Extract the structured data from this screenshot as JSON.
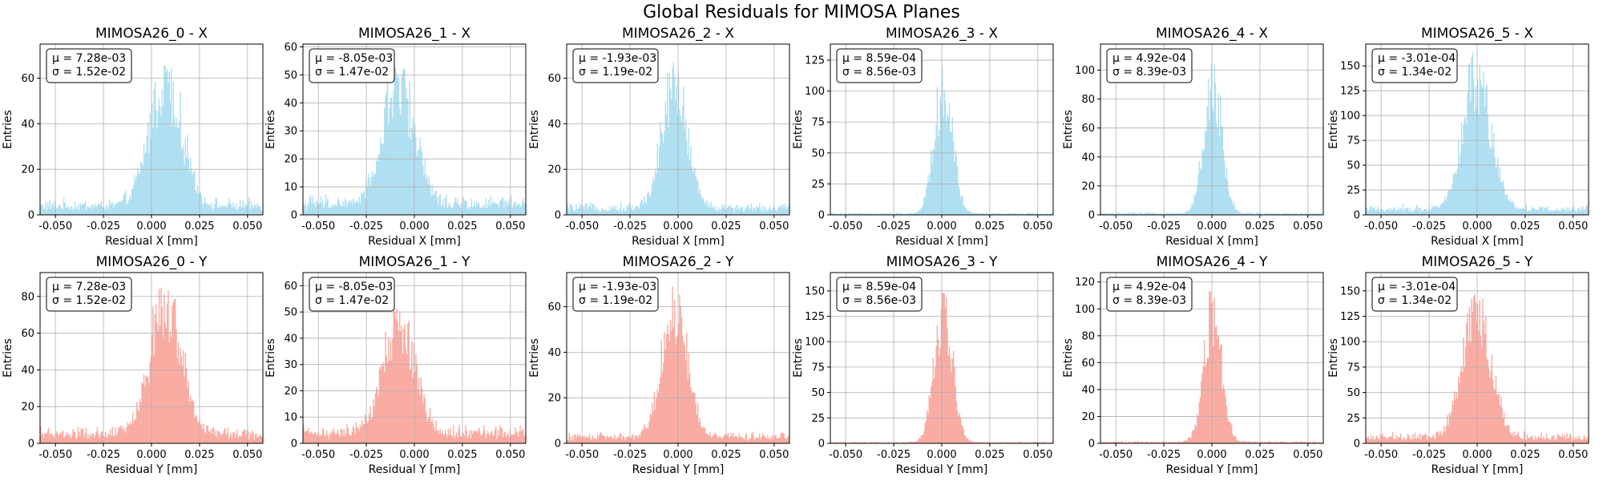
{
  "figure": {
    "title": "Global Residuals for MIMOSA Planes"
  },
  "colors": {
    "x_fill": "#a6dcef",
    "y_fill": "#f8a298",
    "grid": "#b0b0b0",
    "frame": "#000000"
  },
  "chart_data": [
    {
      "type": "bar",
      "panel": "MIMOSA26_0 - X",
      "title": "MIMOSA26_0 - X",
      "xlabel": "Residual X [mm]",
      "ylabel": "Entries",
      "xlim": [
        -0.058,
        0.058
      ],
      "ylim": [
        0,
        75
      ],
      "xticks": [
        "-0.050",
        "-0.025",
        "0.000",
        "0.025",
        "0.050"
      ],
      "yticks": [
        "0",
        "20",
        "40",
        "60"
      ],
      "mean": 0.00728,
      "sigma": 0.0152,
      "stats": [
        "μ = 7.28e-03",
        "σ = 1.52e-02"
      ],
      "background": 4,
      "peak": 68,
      "grid": true,
      "legend": "top-left"
    },
    {
      "type": "bar",
      "panel": "MIMOSA26_1 - X",
      "title": "MIMOSA26_1 - X",
      "xlabel": "Residual X [mm]",
      "ylabel": "Entries",
      "xlim": [
        -0.058,
        0.058
      ],
      "ylim": [
        0,
        61
      ],
      "xticks": [
        "-0.050",
        "-0.025",
        "0.000",
        "0.025",
        "0.050"
      ],
      "yticks": [
        "0",
        "10",
        "20",
        "30",
        "40",
        "50",
        "60"
      ],
      "mean": -0.00805,
      "sigma": 0.0147,
      "stats": [
        "μ = -8.05e-03",
        "σ = 1.47e-02"
      ],
      "background": 4,
      "peak": 53,
      "grid": true,
      "legend": "top-left"
    },
    {
      "type": "bar",
      "panel": "MIMOSA26_2 - X",
      "title": "MIMOSA26_2 - X",
      "xlabel": "Residual X [mm]",
      "ylabel": "Entries",
      "xlim": [
        -0.058,
        0.058
      ],
      "ylim": [
        0,
        75
      ],
      "xticks": [
        "-0.050",
        "-0.025",
        "0.000",
        "0.025",
        "0.050"
      ],
      "yticks": [
        "0",
        "20",
        "40",
        "60"
      ],
      "mean": -0.00193,
      "sigma": 0.0119,
      "stats": [
        "μ = -1.93e-03",
        "σ = 1.19e-02"
      ],
      "background": 3,
      "peak": 68,
      "grid": true,
      "legend": "top-left"
    },
    {
      "type": "bar",
      "panel": "MIMOSA26_3 - X",
      "title": "MIMOSA26_3 - X",
      "xlabel": "Residual X [mm]",
      "ylabel": "Entries",
      "xlim": [
        -0.058,
        0.058
      ],
      "ylim": [
        0,
        138
      ],
      "xticks": [
        "-0.050",
        "-0.025",
        "0.000",
        "0.025",
        "0.050"
      ],
      "yticks": [
        "0",
        "25",
        "50",
        "75",
        "100",
        "125"
      ],
      "mean": 0.000859,
      "sigma": 0.00856,
      "stats": [
        "μ = 8.59e-04",
        "σ = 8.56e-03"
      ],
      "background": 1,
      "peak": 125,
      "grid": true,
      "legend": "top-left"
    },
    {
      "type": "bar",
      "panel": "MIMOSA26_4 - X",
      "title": "MIMOSA26_4 - X",
      "xlabel": "Residual X [mm]",
      "ylabel": "Entries",
      "xlim": [
        -0.058,
        0.058
      ],
      "ylim": [
        0,
        118
      ],
      "xticks": [
        "-0.050",
        "-0.025",
        "0.000",
        "0.025",
        "0.050"
      ],
      "yticks": [
        "0",
        "20",
        "40",
        "60",
        "80",
        "100"
      ],
      "mean": 0.000492,
      "sigma": 0.00839,
      "stats": [
        "μ = 4.92e-04",
        "σ = 8.39e-03"
      ],
      "background": 1,
      "peak": 115,
      "grid": true,
      "legend": "top-left"
    },
    {
      "type": "bar",
      "panel": "MIMOSA26_5 - X",
      "title": "MIMOSA26_5 - X",
      "xlabel": "Residual X [mm]",
      "ylabel": "Entries",
      "xlim": [
        -0.058,
        0.058
      ],
      "ylim": [
        0,
        172
      ],
      "xticks": [
        "-0.050",
        "-0.025",
        "0.000",
        "0.025",
        "0.050"
      ],
      "yticks": [
        "0",
        "25",
        "50",
        "75",
        "100",
        "125",
        "150"
      ],
      "mean": -0.000301,
      "sigma": 0.0134,
      "stats": [
        "μ = -3.01e-04",
        "σ = 1.34e-02"
      ],
      "background": 6,
      "peak": 165,
      "grid": true,
      "legend": "top-left"
    },
    {
      "type": "bar",
      "panel": "MIMOSA26_0 - Y",
      "title": "MIMOSA26_0 - Y",
      "xlabel": "Residual Y [mm]",
      "ylabel": "Entries",
      "xlim": [
        -0.058,
        0.058
      ],
      "ylim": [
        0,
        93
      ],
      "xticks": [
        "-0.050",
        "-0.025",
        "0.000",
        "0.025",
        "0.050"
      ],
      "yticks": [
        "0",
        "20",
        "40",
        "60",
        "80"
      ],
      "mean": 0.00728,
      "sigma": 0.0152,
      "stats": [
        "μ = 7.28e-03",
        "σ = 1.52e-02"
      ],
      "background": 5,
      "peak": 85,
      "grid": true,
      "legend": "top-left"
    },
    {
      "type": "bar",
      "panel": "MIMOSA26_1 - Y",
      "title": "MIMOSA26_1 - Y",
      "xlabel": "Residual Y [mm]",
      "ylabel": "Entries",
      "xlim": [
        -0.058,
        0.058
      ],
      "ylim": [
        0,
        65
      ],
      "xticks": [
        "-0.050",
        "-0.025",
        "0.000",
        "0.025",
        "0.050"
      ],
      "yticks": [
        "0",
        "10",
        "20",
        "30",
        "40",
        "50",
        "60"
      ],
      "mean": -0.00805,
      "sigma": 0.0147,
      "stats": [
        "μ = -8.05e-03",
        "σ = 1.47e-02"
      ],
      "background": 4,
      "peak": 52,
      "grid": true,
      "legend": "top-left"
    },
    {
      "type": "bar",
      "panel": "MIMOSA26_2 - Y",
      "title": "MIMOSA26_2 - Y",
      "xlabel": "Residual Y [mm]",
      "ylabel": "Entries",
      "xlim": [
        -0.058,
        0.058
      ],
      "ylim": [
        0,
        75
      ],
      "xticks": [
        "-0.050",
        "-0.025",
        "0.000",
        "0.025",
        "0.050"
      ],
      "yticks": [
        "0",
        "20",
        "40",
        "60"
      ],
      "mean": -0.00193,
      "sigma": 0.0119,
      "stats": [
        "μ = -1.93e-03",
        "σ = 1.19e-02"
      ],
      "background": 3,
      "peak": 70,
      "grid": true,
      "legend": "top-left"
    },
    {
      "type": "bar",
      "panel": "MIMOSA26_3 - Y",
      "title": "MIMOSA26_3 - Y",
      "xlabel": "Residual Y [mm]",
      "ylabel": "Entries",
      "xlim": [
        -0.058,
        0.058
      ],
      "ylim": [
        0,
        168
      ],
      "xticks": [
        "-0.050",
        "-0.025",
        "0.000",
        "0.025",
        "0.050"
      ],
      "yticks": [
        "0",
        "25",
        "50",
        "75",
        "100",
        "125",
        "150"
      ],
      "mean": 0.000859,
      "sigma": 0.00856,
      "stats": [
        "μ = 8.59e-04",
        "σ = 8.56e-03"
      ],
      "background": 1,
      "peak": 160,
      "grid": true,
      "legend": "top-left"
    },
    {
      "type": "bar",
      "panel": "MIMOSA26_4 - Y",
      "title": "MIMOSA26_4 - Y",
      "xlabel": "Residual Y [mm]",
      "ylabel": "Entries",
      "xlim": [
        -0.058,
        0.058
      ],
      "ylim": [
        0,
        127
      ],
      "xticks": [
        "-0.050",
        "-0.025",
        "0.000",
        "0.025",
        "0.050"
      ],
      "yticks": [
        "0",
        "20",
        "40",
        "60",
        "80",
        "100",
        "120"
      ],
      "mean": 0.000492,
      "sigma": 0.00839,
      "stats": [
        "μ = 4.92e-04",
        "σ = 8.39e-03"
      ],
      "background": 1,
      "peak": 115,
      "grid": true,
      "legend": "top-left"
    },
    {
      "type": "bar",
      "panel": "MIMOSA26_5 - Y",
      "title": "MIMOSA26_5 - Y",
      "xlabel": "Residual Y [mm]",
      "ylabel": "Entries",
      "xlim": [
        -0.058,
        0.058
      ],
      "ylim": [
        0,
        168
      ],
      "xticks": [
        "-0.050",
        "-0.025",
        "0.000",
        "0.025",
        "0.050"
      ],
      "yticks": [
        "0",
        "25",
        "50",
        "75",
        "100",
        "125",
        "150"
      ],
      "mean": -0.000301,
      "sigma": 0.0134,
      "stats": [
        "μ = -3.01e-04",
        "σ = 1.34e-02"
      ],
      "background": 6,
      "peak": 150,
      "grid": true,
      "legend": "top-left"
    }
  ]
}
